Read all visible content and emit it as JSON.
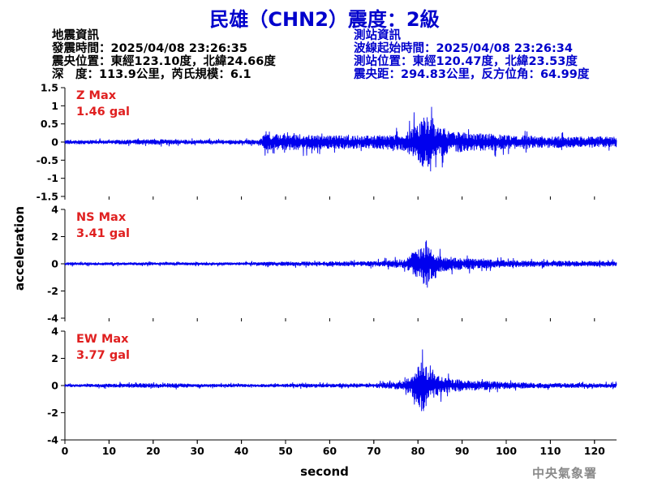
{
  "title": "民雄（CHN2）震度：2級",
  "quake_info": {
    "heading": "地震資訊",
    "origin_time": "發震時間：2025/04/08 23:26:35",
    "epicenter": "震央位置：東經123.10度，北緯24.66度",
    "depth_magnitude": "深　度：113.9公里，芮氏規模：6.1"
  },
  "station_info": {
    "heading": "測站資訊",
    "wave_start": "波線起始時間：2025/04/08 23:26:34",
    "location": "測站位置：東經120.47度，北緯23.53度",
    "distance": "震央距：294.83公里，反方位角：64.99度"
  },
  "colors": {
    "title": "#0000cc",
    "trace": "#0000ee",
    "max_label": "#e02020",
    "agency": "#8a8a8a"
  },
  "agency": "中央氣象署",
  "chart_data": {
    "type": "line",
    "xlabel": "second",
    "ylabel": "acceleration",
    "xlim": [
      0,
      125
    ],
    "xticks": [
      0,
      10,
      20,
      30,
      40,
      50,
      60,
      70,
      80,
      90,
      100,
      110,
      120
    ],
    "panels": [
      {
        "name": "Z",
        "max_label": "Z Max",
        "max_value": "1.46 gal",
        "ylim": [
          -1.5,
          1.5
        ],
        "yticks": [
          1.5,
          1,
          0.5,
          0,
          -0.5,
          -1,
          -1.5
        ],
        "ytick_labels": [
          "1.5",
          "1",
          "0.5",
          "0",
          "-0.5",
          "-1",
          "-1.5"
        ],
        "envelope_t": [
          0,
          10,
          20,
          30,
          44,
          45,
          46,
          52,
          60,
          70,
          77,
          79,
          80,
          81,
          82,
          83,
          84,
          86,
          88,
          92,
          96,
          100,
          110,
          125
        ],
        "envelope_a": [
          0.12,
          0.1,
          0.15,
          0.1,
          0.12,
          0.4,
          0.4,
          0.4,
          0.35,
          0.33,
          0.45,
          0.8,
          1.0,
          1.25,
          1.46,
          1.1,
          0.8,
          0.7,
          0.55,
          0.45,
          0.45,
          0.35,
          0.3,
          0.28
        ]
      },
      {
        "name": "NS",
        "max_label": "NS Max",
        "max_value": "3.41 gal",
        "ylim": [
          -4,
          4
        ],
        "yticks": [
          4,
          2,
          0,
          -2,
          -4
        ],
        "ytick_labels": [
          "4",
          "2",
          "0",
          "-2",
          "-4"
        ],
        "envelope_t": [
          0,
          20,
          40,
          50,
          60,
          70,
          77,
          79,
          80,
          81,
          82,
          83,
          84,
          86,
          88,
          92,
          96,
          100,
          110,
          125
        ],
        "envelope_a": [
          0.2,
          0.2,
          0.2,
          0.3,
          0.3,
          0.35,
          0.6,
          1.5,
          2.0,
          2.5,
          3.41,
          2.0,
          1.4,
          1.1,
          0.9,
          0.7,
          0.6,
          0.5,
          0.4,
          0.35
        ]
      },
      {
        "name": "EW",
        "max_label": "EW Max",
        "max_value": "3.77 gal",
        "ylim": [
          -4,
          4
        ],
        "yticks": [
          4,
          2,
          0,
          -2,
          -4
        ],
        "ytick_labels": [
          "4",
          "2",
          "0",
          "-2",
          "-4"
        ],
        "envelope_t": [
          0,
          10,
          20,
          30,
          40,
          50,
          60,
          70,
          77,
          79,
          80,
          81,
          82,
          83,
          84,
          86,
          88,
          92,
          96,
          100,
          110,
          125
        ],
        "envelope_a": [
          0.2,
          0.25,
          0.35,
          0.25,
          0.2,
          0.25,
          0.25,
          0.3,
          0.6,
          1.8,
          2.5,
          3.77,
          2.8,
          2.0,
          1.5,
          1.0,
          0.9,
          0.7,
          0.6,
          0.45,
          0.35,
          0.3
        ]
      }
    ]
  }
}
